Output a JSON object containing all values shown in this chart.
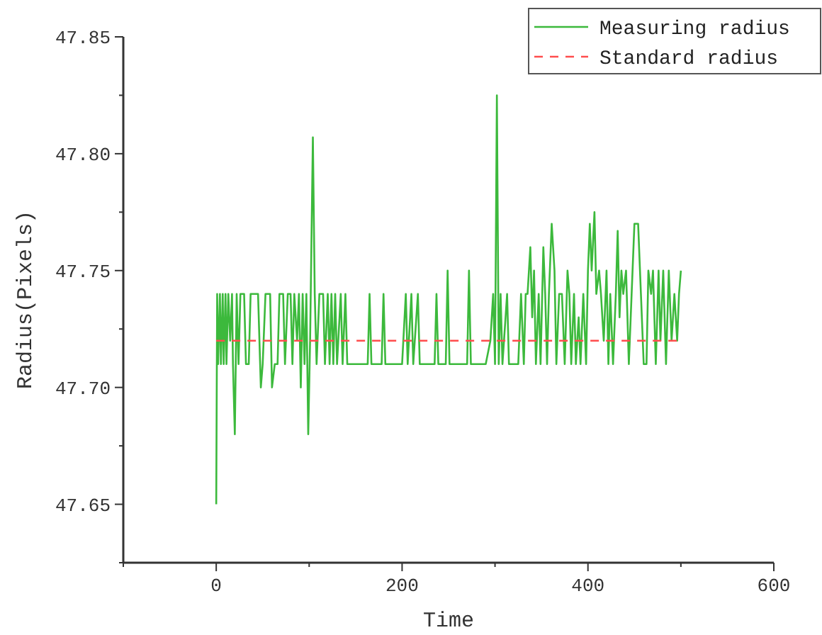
{
  "chart_data": {
    "type": "line",
    "xlabel": "Time",
    "ylabel": "Radius(Pixels)",
    "xlim": [
      -100,
      600
    ],
    "ylim": [
      47.625,
      47.85
    ],
    "xticks": [
      {
        "value": -100,
        "label": null
      },
      0,
      {
        "value": 100,
        "label": null
      },
      200,
      {
        "value": 300,
        "label": null
      },
      400,
      {
        "value": 500,
        "label": null
      },
      600
    ],
    "yticks": [
      {
        "value": 47.625,
        "label": null
      },
      {
        "value": 47.65,
        "label": "47.65"
      },
      {
        "value": 47.675,
        "label": null
      },
      {
        "value": 47.7,
        "label": "47.70"
      },
      {
        "value": 47.725,
        "label": null
      },
      {
        "value": 47.75,
        "label": "47.75"
      },
      {
        "value": 47.775,
        "label": null
      },
      {
        "value": 47.8,
        "label": "47.80"
      },
      {
        "value": 47.825,
        "label": null
      },
      {
        "value": 47.85,
        "label": "47.85"
      }
    ],
    "grid": false,
    "legend": "top right",
    "series": [
      {
        "name": "Measuring radius",
        "color": "#3cb93c",
        "line_style": "solid",
        "x": [
          0,
          1,
          2,
          4,
          5,
          7,
          8,
          10,
          11,
          13,
          15,
          17,
          18,
          20,
          22,
          24,
          26,
          30,
          32,
          35,
          37,
          45,
          48,
          50,
          53,
          58,
          60,
          63,
          66,
          68,
          72,
          74,
          77,
          80,
          82,
          84,
          87,
          89,
          91,
          93,
          95,
          97,
          99,
          101,
          104,
          106,
          108,
          111,
          115,
          117,
          120,
          122,
          124,
          126,
          128,
          130,
          134,
          136,
          139,
          141,
          145,
          163,
          165,
          167,
          178,
          180,
          182,
          200,
          204,
          206,
          210,
          212,
          217,
          219,
          235,
          237,
          239,
          247,
          249,
          251,
          270,
          272,
          274,
          290,
          295,
          298,
          300,
          302,
          304,
          306,
          308,
          313,
          315,
          325,
          328,
          331,
          333,
          335,
          338,
          340,
          342,
          344,
          347,
          349,
          352,
          354,
          356,
          358,
          361,
          364,
          366,
          369,
          372,
          375,
          378,
          380,
          382,
          385,
          387,
          390,
          392,
          395,
          398,
          400,
          402,
          404,
          407,
          409,
          412,
          414,
          417,
          420,
          422,
          424,
          427,
          430,
          432,
          434,
          436,
          438,
          441,
          444,
          447,
          450,
          454,
          457,
          460,
          463,
          465,
          468,
          470,
          473,
          476,
          478,
          481,
          484,
          487,
          490,
          493,
          496,
          498,
          500
        ],
        "values": [
          47.65,
          47.74,
          47.71,
          47.74,
          47.71,
          47.74,
          47.71,
          47.74,
          47.71,
          47.74,
          47.72,
          47.74,
          47.71,
          47.68,
          47.74,
          47.71,
          47.74,
          47.74,
          47.71,
          47.71,
          47.74,
          47.74,
          47.7,
          47.71,
          47.74,
          47.74,
          47.7,
          47.71,
          47.71,
          47.74,
          47.74,
          47.71,
          47.74,
          47.74,
          47.71,
          47.74,
          47.72,
          47.74,
          47.7,
          47.74,
          47.71,
          47.74,
          47.68,
          47.72,
          47.807,
          47.74,
          47.71,
          47.74,
          47.74,
          47.71,
          47.74,
          47.71,
          47.74,
          47.71,
          47.74,
          47.71,
          47.74,
          47.71,
          47.74,
          47.71,
          47.71,
          47.71,
          47.74,
          47.71,
          47.71,
          47.74,
          47.71,
          47.71,
          47.74,
          47.71,
          47.74,
          47.71,
          47.74,
          47.71,
          47.71,
          47.74,
          47.71,
          47.71,
          47.75,
          47.71,
          47.71,
          47.75,
          47.71,
          47.71,
          47.72,
          47.74,
          47.71,
          47.825,
          47.71,
          47.74,
          47.71,
          47.74,
          47.71,
          47.71,
          47.74,
          47.71,
          47.74,
          47.74,
          47.76,
          47.73,
          47.75,
          47.71,
          47.74,
          47.71,
          47.76,
          47.74,
          47.71,
          47.74,
          47.77,
          47.75,
          47.71,
          47.74,
          47.74,
          47.71,
          47.75,
          47.74,
          47.71,
          47.74,
          47.71,
          47.73,
          47.71,
          47.74,
          47.71,
          47.75,
          47.77,
          47.75,
          47.775,
          47.74,
          47.75,
          47.74,
          47.72,
          47.75,
          47.71,
          47.74,
          47.71,
          47.74,
          47.767,
          47.73,
          47.75,
          47.74,
          47.75,
          47.71,
          47.74,
          47.77,
          47.77,
          47.74,
          47.71,
          47.71,
          47.75,
          47.74,
          47.75,
          47.71,
          47.75,
          47.72,
          47.75,
          47.71,
          47.75,
          47.72,
          47.74,
          47.72,
          47.74,
          47.75
        ]
      },
      {
        "name": "Standard radius",
        "color": "#ff4d4d",
        "line_style": "dashed",
        "x": [
          0,
          500
        ],
        "values": [
          47.72,
          47.72
        ]
      }
    ]
  }
}
